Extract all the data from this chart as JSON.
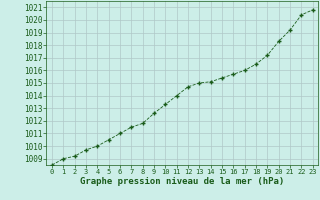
{
  "x": [
    0,
    1,
    2,
    3,
    4,
    5,
    6,
    7,
    8,
    9,
    10,
    11,
    12,
    13,
    14,
    15,
    16,
    17,
    18,
    19,
    20,
    21,
    22,
    23
  ],
  "y": [
    1008.5,
    1009.0,
    1009.2,
    1009.7,
    1010.0,
    1010.5,
    1011.0,
    1011.5,
    1011.8,
    1012.6,
    1013.3,
    1014.0,
    1014.7,
    1015.0,
    1015.1,
    1015.4,
    1015.7,
    1016.0,
    1016.5,
    1017.2,
    1018.3,
    1019.2,
    1020.4,
    1020.8
  ],
  "ylim": [
    1008.5,
    1021.5
  ],
  "xlim": [
    -0.5,
    23.5
  ],
  "yticks": [
    1009,
    1010,
    1011,
    1012,
    1013,
    1014,
    1015,
    1016,
    1017,
    1018,
    1019,
    1020,
    1021
  ],
  "xticks": [
    0,
    1,
    2,
    3,
    4,
    5,
    6,
    7,
    8,
    9,
    10,
    11,
    12,
    13,
    14,
    15,
    16,
    17,
    18,
    19,
    20,
    21,
    22,
    23
  ],
  "line_color": "#1a5c1a",
  "marker_color": "#1a5c1a",
  "bg_color": "#cceee8",
  "grid_color": "#b0c8c8",
  "xlabel": "Graphe pression niveau de la mer (hPa)",
  "xlabel_color": "#1a5c1a",
  "xlabel_fontsize": 6.5,
  "tick_fontsize": 5.0,
  "ytick_fontsize": 5.5
}
